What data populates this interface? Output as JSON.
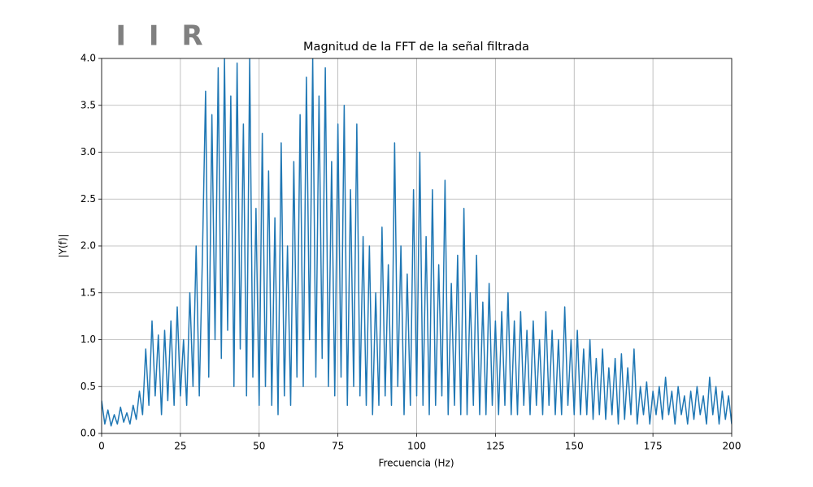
{
  "chart_data": {
    "type": "line",
    "title": "Magnitud de la FFT de la señal filtrada",
    "annotation": "I I R",
    "xlabel": "Frecuencia (Hz)",
    "ylabel": "|Y(f)|",
    "xlim": [
      0,
      200
    ],
    "ylim": [
      0,
      4
    ],
    "xticks": [
      0,
      25,
      50,
      75,
      100,
      125,
      150,
      175,
      200
    ],
    "yticks": [
      {
        "value": 0,
        "label": "0.0"
      },
      {
        "value": 0.5,
        "label": "0.5"
      },
      {
        "value": 1,
        "label": "1.0"
      },
      {
        "value": 1.5,
        "label": "1.5"
      },
      {
        "value": 2,
        "label": "2.0"
      },
      {
        "value": 2.5,
        "label": "2.5"
      },
      {
        "value": 3,
        "label": "3.0"
      },
      {
        "value": 3.5,
        "label": "3.5"
      },
      {
        "value": 4,
        "label": "4.0"
      }
    ],
    "grid": true,
    "x": [
      0,
      1,
      2,
      3,
      4,
      5,
      6,
      7,
      8,
      9,
      10,
      11,
      12,
      13,
      14,
      15,
      16,
      17,
      18,
      19,
      20,
      21,
      22,
      23,
      24,
      25,
      26,
      27,
      28,
      29,
      30,
      31,
      32,
      33,
      34,
      35,
      36,
      37,
      38,
      39,
      40,
      41,
      42,
      43,
      44,
      45,
      46,
      47,
      48,
      49,
      50,
      51,
      52,
      53,
      54,
      55,
      56,
      57,
      58,
      59,
      60,
      61,
      62,
      63,
      64,
      65,
      66,
      67,
      68,
      69,
      70,
      71,
      72,
      73,
      74,
      75,
      76,
      77,
      78,
      79,
      80,
      81,
      82,
      83,
      84,
      85,
      86,
      87,
      88,
      89,
      90,
      91,
      92,
      93,
      94,
      95,
      96,
      97,
      98,
      99,
      100,
      101,
      102,
      103,
      104,
      105,
      106,
      107,
      108,
      109,
      110,
      111,
      112,
      113,
      114,
      115,
      116,
      117,
      118,
      119,
      120,
      121,
      122,
      123,
      124,
      125,
      126,
      127,
      128,
      129,
      130,
      131,
      132,
      133,
      134,
      135,
      136,
      137,
      138,
      139,
      140,
      141,
      142,
      143,
      144,
      145,
      146,
      147,
      148,
      149,
      150,
      151,
      152,
      153,
      154,
      155,
      156,
      157,
      158,
      159,
      160,
      161,
      162,
      163,
      164,
      165,
      166,
      167,
      168,
      169,
      170,
      171,
      172,
      173,
      174,
      175,
      176,
      177,
      178,
      179,
      180,
      181,
      182,
      183,
      184,
      185,
      186,
      187,
      188,
      189,
      190,
      191,
      192,
      193,
      194,
      195,
      196,
      197,
      198,
      199,
      200
    ],
    "series": [
      {
        "color": "#1f77b4",
        "values": [
          0.35,
          0.1,
          0.25,
          0.08,
          0.2,
          0.1,
          0.28,
          0.12,
          0.22,
          0.1,
          0.3,
          0.15,
          0.45,
          0.2,
          0.9,
          0.3,
          1.2,
          0.4,
          1.05,
          0.2,
          1.1,
          0.35,
          1.2,
          0.3,
          1.35,
          0.4,
          1.0,
          0.3,
          1.5,
          0.5,
          2.0,
          0.4,
          1.9,
          3.65,
          0.6,
          3.4,
          1.0,
          3.9,
          0.8,
          4.0,
          1.1,
          3.6,
          0.5,
          3.95,
          0.9,
          3.3,
          0.4,
          4.0,
          0.6,
          2.4,
          0.3,
          3.2,
          0.5,
          2.8,
          0.3,
          2.3,
          0.2,
          3.1,
          0.4,
          2.0,
          0.3,
          2.9,
          0.6,
          3.4,
          0.5,
          3.8,
          1.0,
          4.0,
          0.6,
          3.6,
          0.8,
          3.9,
          0.5,
          2.9,
          0.4,
          3.3,
          0.6,
          3.5,
          0.3,
          2.6,
          0.5,
          3.3,
          0.4,
          2.1,
          0.3,
          2.0,
          0.2,
          1.5,
          0.3,
          2.2,
          0.4,
          1.8,
          0.3,
          3.1,
          0.5,
          2.0,
          0.2,
          1.7,
          0.3,
          2.6,
          0.4,
          3.0,
          0.3,
          2.1,
          0.2,
          2.6,
          0.3,
          1.8,
          0.4,
          2.7,
          0.2,
          1.6,
          0.3,
          1.9,
          0.2,
          2.4,
          0.2,
          1.5,
          0.3,
          1.9,
          0.2,
          1.4,
          0.2,
          1.6,
          0.3,
          1.2,
          0.2,
          1.3,
          0.3,
          1.5,
          0.2,
          1.2,
          0.2,
          1.3,
          0.3,
          1.1,
          0.2,
          1.2,
          0.3,
          1.0,
          0.2,
          1.3,
          0.3,
          1.1,
          0.2,
          1.0,
          0.2,
          1.35,
          0.3,
          1.0,
          0.2,
          1.1,
          0.2,
          0.9,
          0.2,
          1.0,
          0.15,
          0.8,
          0.2,
          0.9,
          0.15,
          0.7,
          0.2,
          0.8,
          0.1,
          0.85,
          0.15,
          0.7,
          0.2,
          0.9,
          0.1,
          0.5,
          0.2,
          0.55,
          0.1,
          0.45,
          0.2,
          0.5,
          0.15,
          0.6,
          0.2,
          0.45,
          0.1,
          0.5,
          0.2,
          0.4,
          0.1,
          0.45,
          0.15,
          0.5,
          0.2,
          0.4,
          0.1,
          0.6,
          0.2,
          0.5,
          0.1,
          0.45,
          0.15,
          0.4,
          0.1
        ]
      }
    ]
  }
}
